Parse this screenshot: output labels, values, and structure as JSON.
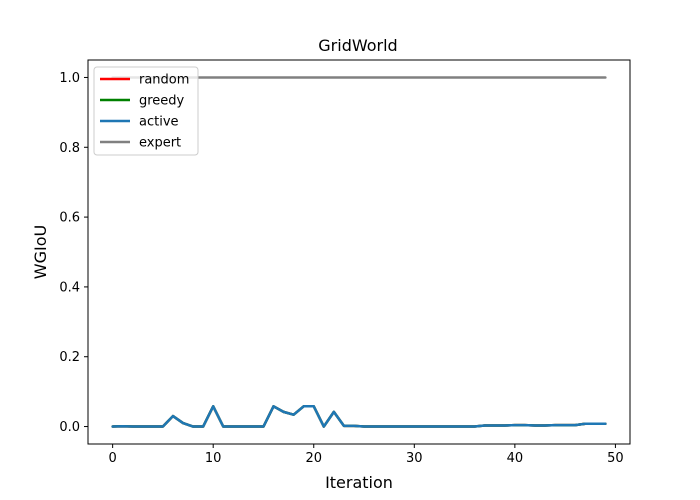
{
  "chart_data": {
    "type": "line",
    "title": "GridWorld",
    "xlabel": "Iteration",
    "ylabel": "WGIoU",
    "xlim": [
      -2.45,
      51.45
    ],
    "ylim": [
      -0.05,
      1.05
    ],
    "xticks": [
      0,
      10,
      20,
      30,
      40,
      50
    ],
    "yticks": [
      0.0,
      0.2,
      0.4,
      0.6,
      0.8,
      1.0
    ],
    "xtick_labels": [
      "0",
      "10",
      "20",
      "30",
      "40",
      "50"
    ],
    "ytick_labels": [
      "0.0",
      "0.2",
      "0.4",
      "0.6",
      "0.8",
      "1.0"
    ],
    "grid": false,
    "legend_position": "top-left",
    "x": [
      0,
      1,
      2,
      3,
      4,
      5,
      6,
      7,
      8,
      9,
      10,
      11,
      12,
      13,
      14,
      15,
      16,
      17,
      18,
      19,
      20,
      21,
      22,
      23,
      24,
      25,
      26,
      27,
      28,
      29,
      30,
      31,
      32,
      33,
      34,
      35,
      36,
      37,
      38,
      39,
      40,
      41,
      42,
      43,
      44,
      45,
      46,
      47,
      48,
      49
    ],
    "series": [
      {
        "name": "random",
        "color": "#ff0000",
        "values": [
          0.0,
          0.001,
          0.0,
          0.0,
          0.0,
          0.0,
          0.03,
          0.01,
          0.0,
          0.0,
          0.058,
          0.0,
          0.0,
          0.0,
          0.0,
          0.0,
          0.058,
          0.042,
          0.034,
          0.058,
          0.058,
          0.0,
          0.042,
          0.002,
          0.002,
          0.0,
          0.0,
          0.0,
          0.0,
          0.0,
          0.0,
          0.0,
          0.0,
          0.0,
          0.0,
          0.0,
          0.0,
          0.003,
          0.003,
          0.003,
          0.004,
          0.004,
          0.003,
          0.003,
          0.004,
          0.004,
          0.004,
          0.008,
          0.008,
          0.008
        ]
      },
      {
        "name": "greedy",
        "color": "#008000",
        "values": [
          0.0,
          0.001,
          0.0,
          0.0,
          0.0,
          0.0,
          0.03,
          0.01,
          0.0,
          0.0,
          0.058,
          0.0,
          0.0,
          0.0,
          0.0,
          0.0,
          0.058,
          0.042,
          0.034,
          0.058,
          0.058,
          0.0,
          0.042,
          0.002,
          0.002,
          0.0,
          0.0,
          0.0,
          0.0,
          0.0,
          0.0,
          0.0,
          0.0,
          0.0,
          0.0,
          0.0,
          0.0,
          0.003,
          0.003,
          0.003,
          0.004,
          0.004,
          0.003,
          0.003,
          0.004,
          0.004,
          0.004,
          0.008,
          0.008,
          0.008
        ]
      },
      {
        "name": "active",
        "color": "#1f77b4",
        "values": [
          0.0,
          0.001,
          0.0,
          0.0,
          0.0,
          0.0,
          0.03,
          0.01,
          0.0,
          0.0,
          0.058,
          0.0,
          0.0,
          0.0,
          0.0,
          0.0,
          0.058,
          0.042,
          0.034,
          0.058,
          0.058,
          0.0,
          0.042,
          0.002,
          0.002,
          0.0,
          0.0,
          0.0,
          0.0,
          0.0,
          0.0,
          0.0,
          0.0,
          0.0,
          0.0,
          0.0,
          0.0,
          0.003,
          0.003,
          0.003,
          0.004,
          0.004,
          0.003,
          0.003,
          0.004,
          0.004,
          0.004,
          0.008,
          0.008,
          0.008
        ]
      },
      {
        "name": "expert",
        "color": "#808080",
        "values": [
          1,
          1,
          1,
          1,
          1,
          1,
          1,
          1,
          1,
          1,
          1,
          1,
          1,
          1,
          1,
          1,
          1,
          1,
          1,
          1,
          1,
          1,
          1,
          1,
          1,
          1,
          1,
          1,
          1,
          1,
          1,
          1,
          1,
          1,
          1,
          1,
          1,
          1,
          1,
          1,
          1,
          1,
          1,
          1,
          1,
          1,
          1,
          1,
          1,
          1
        ]
      }
    ]
  }
}
